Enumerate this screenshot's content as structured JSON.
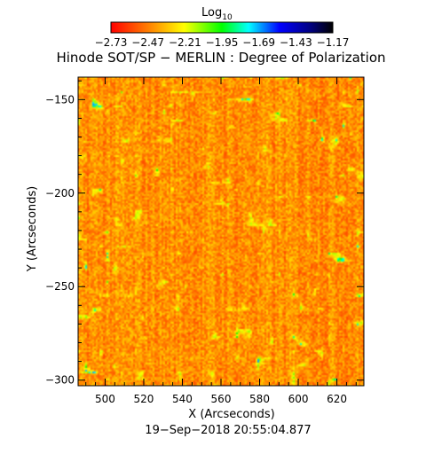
{
  "chart_data": {
    "type": "heatmap",
    "title": "Hinode SOT/SP − MERLIN : Degree of Polarization",
    "colorbar": {
      "label_base": "Log",
      "label_sub": "10",
      "ticks": [
        "−2.73",
        "−2.47",
        "−2.21",
        "−1.95",
        "−1.69",
        "−1.43",
        "−1.17"
      ],
      "range": [
        -2.73,
        -1.17
      ],
      "placement": "top",
      "colormap": [
        "#ff0000",
        "#ff8000",
        "#ffff00",
        "#00ff00",
        "#00ffff",
        "#0000ff",
        "#000080",
        "#000000"
      ]
    },
    "xlabel": "X (Arcseconds)",
    "ylabel": "Y (Arcseconds)",
    "xlim": [
      486,
      634
    ],
    "ylim": [
      -303,
      -138
    ],
    "x_ticks": [
      500,
      520,
      540,
      560,
      580,
      600,
      620
    ],
    "y_ticks": [
      -150,
      -200,
      -250,
      -300
    ],
    "grid": false,
    "footer": "19−Sep−2018 20:55:04.877",
    "map_description_note": "",
    "dominant_value_range": [
      -2.6,
      -2.3
    ]
  }
}
